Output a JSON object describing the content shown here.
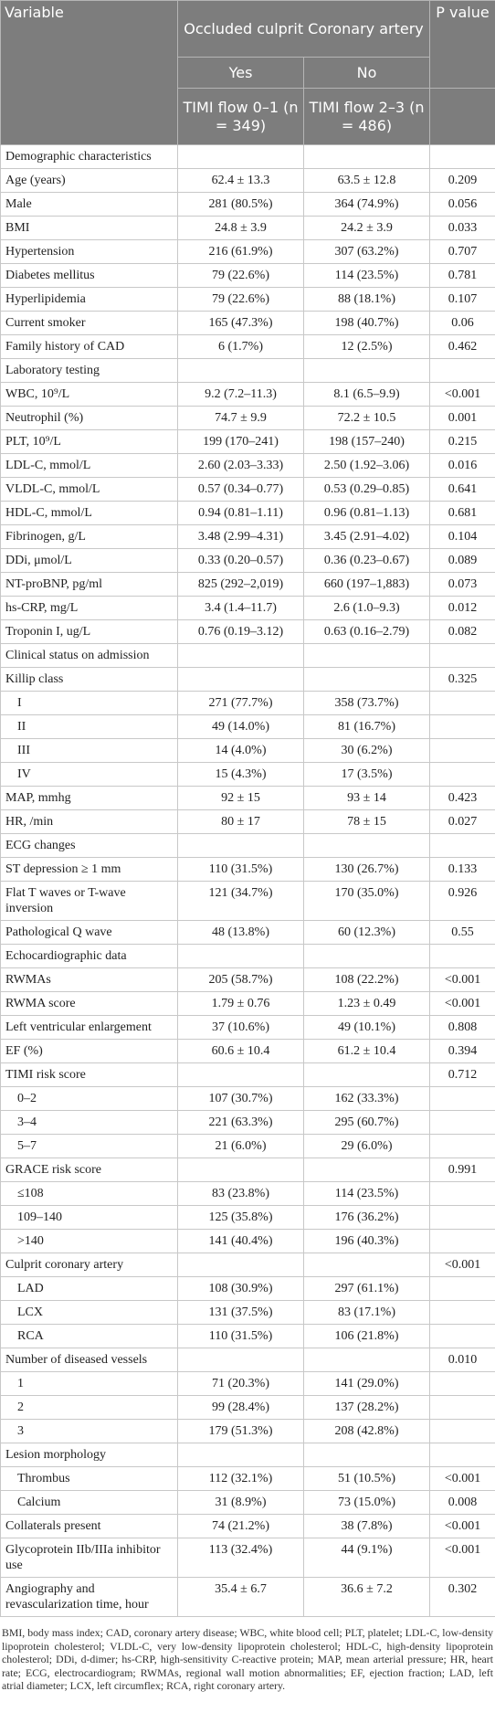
{
  "header": {
    "variable": "Variable",
    "group": "Occluded culprit Coronary artery",
    "p": "P value",
    "yes": "Yes",
    "no": "No",
    "yes_sub": "TIMI flow 0–1 (n = 349)",
    "no_sub": "TIMI flow 2–3 (n = 486)"
  },
  "table": {
    "rows": [
      {
        "cells": [
          "Demographic characteristics"
        ]
      },
      {
        "cells": [
          "Age (years)",
          "62.4 ± 13.3",
          "63.5 ± 12.8",
          "0.209"
        ]
      },
      {
        "cells": [
          "Male",
          "281 (80.5%)",
          "364 (74.9%)",
          "0.056"
        ]
      },
      {
        "cells": [
          "BMI",
          "24.8 ± 3.9",
          "24.2 ± 3.9",
          "0.033"
        ]
      },
      {
        "cells": [
          "Hypertension",
          "216 (61.9%)",
          "307 (63.2%)",
          "0.707"
        ]
      },
      {
        "cells": [
          "Diabetes mellitus",
          "79 (22.6%)",
          "114 (23.5%)",
          "0.781"
        ]
      },
      {
        "cells": [
          "Hyperlipidemia",
          "79 (22.6%)",
          "88 (18.1%)",
          "0.107"
        ]
      },
      {
        "cells": [
          "Current smoker",
          "165 (47.3%)",
          "198 (40.7%)",
          "0.06"
        ]
      },
      {
        "cells": [
          "Family history of CAD",
          "6 (1.7%)",
          "12 (2.5%)",
          "0.462"
        ]
      },
      {
        "cells": [
          "Laboratory testing"
        ]
      },
      {
        "cells": [
          "WBC, 10⁹/L",
          "9.2 (7.2–11.3)",
          "8.1 (6.5–9.9)",
          "<0.001"
        ]
      },
      {
        "cells": [
          "Neutrophil (%)",
          "74.7 ± 9.9",
          "72.2 ± 10.5",
          "0.001"
        ]
      },
      {
        "cells": [
          "PLT, 10⁹/L",
          "199 (170–241)",
          "198 (157–240)",
          "0.215"
        ]
      },
      {
        "cells": [
          "LDL-C, mmol/L",
          "2.60 (2.03–3.33)",
          "2.50 (1.92–3.06)",
          "0.016"
        ]
      },
      {
        "cells": [
          "VLDL-C, mmol/L",
          "0.57 (0.34–0.77)",
          "0.53 (0.29–0.85)",
          "0.641"
        ]
      },
      {
        "cells": [
          "HDL-C, mmol/L",
          "0.94 (0.81–1.11)",
          "0.96 (0.81–1.13)",
          "0.681"
        ]
      },
      {
        "cells": [
          "Fibrinogen, g/L",
          "3.48 (2.99–4.31)",
          "3.45 (2.91–4.02)",
          "0.104"
        ]
      },
      {
        "cells": [
          "DDi, μmol/L",
          "0.33 (0.20–0.57)",
          "0.36 (0.23–0.67)",
          "0.089"
        ]
      },
      {
        "cells": [
          "NT-proBNP, pg/ml",
          "825 (292–2,019)",
          "660 (197–1,883)",
          "0.073"
        ]
      },
      {
        "cells": [
          "hs-CRP, mg/L",
          "3.4 (1.4–11.7)",
          "2.6 (1.0–9.3)",
          "0.012"
        ]
      },
      {
        "cells": [
          "Troponin I, ug/L",
          "0.76 (0.19–3.12)",
          "0.63 (0.16–2.79)",
          "0.082"
        ]
      },
      {
        "cells": [
          "Clinical status on admission"
        ]
      },
      {
        "cells": [
          "Killip class",
          "",
          "",
          "0.325"
        ]
      },
      {
        "cells": [
          "I",
          "271 (77.7%)",
          "358 (73.7%)",
          ""
        ],
        "indent": true
      },
      {
        "cells": [
          "II",
          "49 (14.0%)",
          "81 (16.7%)",
          ""
        ],
        "indent": true
      },
      {
        "cells": [
          "III",
          "14 (4.0%)",
          "30 (6.2%)",
          ""
        ],
        "indent": true
      },
      {
        "cells": [
          "IV",
          "15 (4.3%)",
          "17 (3.5%)",
          ""
        ],
        "indent": true
      },
      {
        "cells": [
          "MAP, mmhg",
          "92 ± 15",
          "93 ± 14",
          "0.423"
        ]
      },
      {
        "cells": [
          "HR, /min",
          "80 ± 17",
          "78 ± 15",
          "0.027"
        ]
      },
      {
        "cells": [
          "ECG changes"
        ]
      },
      {
        "cells": [
          "ST depression ≥ 1 mm",
          "110 (31.5%)",
          "130 (26.7%)",
          "0.133"
        ]
      },
      {
        "cells": [
          "Flat T waves or T-wave inversion",
          "121 (34.7%)",
          "170 (35.0%)",
          "0.926"
        ]
      },
      {
        "cells": [
          "Pathological Q wave",
          "48 (13.8%)",
          "60 (12.3%)",
          "0.55"
        ]
      },
      {
        "cells": [
          "Echocardiographic data"
        ]
      },
      {
        "cells": [
          "RWMAs",
          "205 (58.7%)",
          "108 (22.2%)",
          "<0.001"
        ]
      },
      {
        "cells": [
          "RWMA score",
          "1.79 ± 0.76",
          "1.23 ± 0.49",
          "<0.001"
        ]
      },
      {
        "cells": [
          "Left ventricular enlargement",
          "37 (10.6%)",
          "49 (10.1%)",
          "0.808"
        ]
      },
      {
        "cells": [
          "EF (%)",
          "60.6 ± 10.4",
          "61.2 ± 10.4",
          "0.394"
        ]
      },
      {
        "cells": [
          "TIMI risk score",
          "",
          "",
          "0.712"
        ]
      },
      {
        "cells": [
          "0–2",
          "107 (30.7%)",
          "162 (33.3%)",
          ""
        ],
        "indent": true
      },
      {
        "cells": [
          "3–4",
          "221 (63.3%)",
          "295 (60.7%)",
          ""
        ],
        "indent": true
      },
      {
        "cells": [
          "5–7",
          "21 (6.0%)",
          "29 (6.0%)",
          ""
        ],
        "indent": true
      },
      {
        "cells": [
          "GRACE risk score",
          "",
          "",
          "0.991"
        ]
      },
      {
        "cells": [
          "≤108",
          "83 (23.8%)",
          "114 (23.5%)",
          ""
        ],
        "indent": true
      },
      {
        "cells": [
          "109–140",
          "125 (35.8%)",
          "176 (36.2%)",
          ""
        ],
        "indent": true
      },
      {
        "cells": [
          ">140",
          "141 (40.4%)",
          "196 (40.3%)",
          ""
        ],
        "indent": true
      },
      {
        "cells": [
          "Culprit coronary artery",
          "",
          "",
          "<0.001"
        ]
      },
      {
        "cells": [
          "LAD",
          "108 (30.9%)",
          "297 (61.1%)",
          ""
        ],
        "indent": true
      },
      {
        "cells": [
          "LCX",
          "131 (37.5%)",
          "83 (17.1%)",
          ""
        ],
        "indent": true
      },
      {
        "cells": [
          "RCA",
          "110 (31.5%)",
          "106 (21.8%)",
          ""
        ],
        "indent": true
      },
      {
        "cells": [
          "Number of diseased vessels",
          "",
          "",
          "0.010"
        ]
      },
      {
        "cells": [
          "1",
          "71 (20.3%)",
          "141 (29.0%)",
          ""
        ],
        "indent": true
      },
      {
        "cells": [
          "2",
          "99 (28.4%)",
          "137 (28.2%)",
          ""
        ],
        "indent": true
      },
      {
        "cells": [
          "3",
          "179 (51.3%)",
          "208 (42.8%)",
          ""
        ],
        "indent": true
      },
      {
        "cells": [
          "Lesion morphology"
        ]
      },
      {
        "cells": [
          "Thrombus",
          "112 (32.1%)",
          "51 (10.5%)",
          "<0.001"
        ],
        "indent": true
      },
      {
        "cells": [
          "Calcium",
          "31 (8.9%)",
          "73 (15.0%)",
          "0.008"
        ],
        "indent": true
      },
      {
        "cells": [
          "Collaterals present",
          "74 (21.2%)",
          "38 (7.8%)",
          "<0.001"
        ]
      },
      {
        "cells": [
          "Glycoprotein IIb/IIIa inhibitor use",
          "113 (32.4%)",
          "44 (9.1%)",
          "<0.001"
        ]
      },
      {
        "cells": [
          "Angiography and revascularization time, hour",
          "35.4 ± 6.7",
          "36.6 ± 7.2",
          "0.302"
        ]
      }
    ]
  },
  "footnote": "BMI, body mass index; CAD, coronary artery disease; WBC, white blood cell; PLT, platelet; LDL-C, low-density lipoprotein cholesterol; VLDL-C, very low-density lipoprotein cholesterol; HDL-C, high-density lipoprotein cholesterol; DDi, d-dimer; hs-CRP, high-sensitivity C-reactive protein; MAP, mean arterial pressure; HR, heart rate; ECG, electrocardiogram; RWMAs, regional wall motion abnormalities; EF, ejection fraction; LAD, left atrial diameter; LCX, left circumflex; RCA, right coronary artery."
}
